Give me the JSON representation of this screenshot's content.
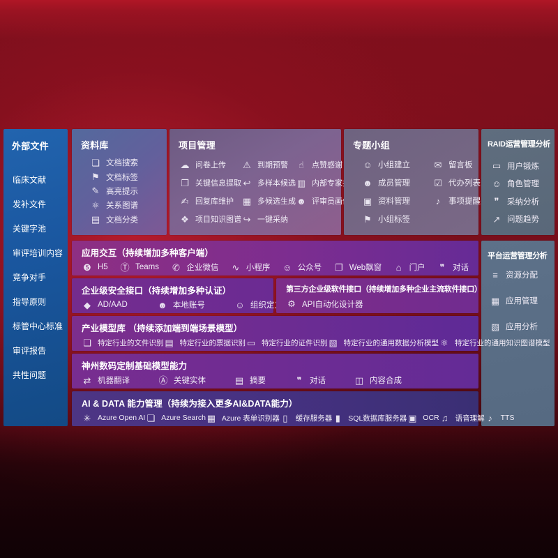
{
  "colors": {
    "background_red": "#7c0f1c",
    "sidebar_blue": "#1a57a0",
    "panel_slate": "#5d7189",
    "row_purple": "#7c2d90",
    "row_indigo": "#463181"
  },
  "sidebar": {
    "title": "外部文件",
    "items": [
      {
        "label": "临床文献"
      },
      {
        "label": "发补文件"
      },
      {
        "label": "关键字池"
      },
      {
        "label": "审评培训内容"
      },
      {
        "label": "竞争对手"
      },
      {
        "label": "指导原则"
      },
      {
        "label": "标管中心标准"
      },
      {
        "label": "审评报告"
      },
      {
        "label": "共性问题"
      }
    ]
  },
  "panels": {
    "repository": {
      "title": "资料库",
      "items": [
        {
          "icon": "document-search",
          "label": "文档搜索"
        },
        {
          "icon": "document-tag",
          "label": "文档标签"
        },
        {
          "icon": "highlight-pen",
          "label": "高亮提示"
        },
        {
          "icon": "relation-graph",
          "label": "关系图谱"
        },
        {
          "icon": "document-category",
          "label": "文档分类"
        }
      ]
    },
    "project": {
      "title": "项目管理",
      "items": [
        {
          "icon": "cloud-upload",
          "label": "问卷上传"
        },
        {
          "icon": "key-info-extract",
          "label": "关键信息提取"
        },
        {
          "icon": "writing-pen",
          "label": "回复库维护"
        },
        {
          "icon": "knowledge-graph",
          "label": "项目知识图谱"
        },
        {
          "icon": "alarm-warning",
          "label": "到期预警"
        },
        {
          "icon": "arrow-back",
          "label": "多样本候选"
        },
        {
          "icon": "grid-generate",
          "label": "多候选生成"
        },
        {
          "icon": "arrow-adopt",
          "label": "一键采纳"
        },
        {
          "icon": "thumbs-up",
          "label": "点赞感谢"
        },
        {
          "icon": "ranking-chart",
          "label": "内部专家排名"
        },
        {
          "icon": "person-portrait",
          "label": "评审员画像"
        }
      ]
    },
    "group": {
      "title": "专题小组",
      "items": [
        {
          "icon": "people-group",
          "label": "小组建立"
        },
        {
          "icon": "member-manage",
          "label": "成员管理"
        },
        {
          "icon": "album",
          "label": "资料管理"
        },
        {
          "icon": "group-tag",
          "label": "小组标签"
        },
        {
          "icon": "message-board",
          "label": "留言板"
        },
        {
          "icon": "todo-list",
          "label": "代办列表"
        },
        {
          "icon": "bell-reminder",
          "label": "事项提醒"
        }
      ]
    },
    "raid": {
      "title": "RAID运营管理分析",
      "items": [
        {
          "icon": "id-card",
          "label": "用户锻炼"
        },
        {
          "icon": "role-people",
          "label": "角色管理"
        },
        {
          "icon": "chat-analysis",
          "label": "采纳分析"
        },
        {
          "icon": "trend-chart",
          "label": "问题趋势"
        }
      ]
    },
    "platform": {
      "title": "平台运营管理分析",
      "items": [
        {
          "icon": "list-allocate",
          "label": "资源分配"
        },
        {
          "icon": "app-grid",
          "label": "应用管理"
        },
        {
          "icon": "app-analysis",
          "label": "应用分析"
        }
      ]
    }
  },
  "rows": {
    "interaction": {
      "title": "应用交互（持续增加多种客户端）",
      "items": [
        {
          "icon": "h5",
          "label": "H5"
        },
        {
          "icon": "teams",
          "label": "Teams"
        },
        {
          "icon": "wechat-work",
          "label": "企业微信"
        },
        {
          "icon": "mini-program",
          "label": "小程序"
        },
        {
          "icon": "official-account",
          "label": "公众号"
        },
        {
          "icon": "web-window",
          "label": "Web飘窗"
        },
        {
          "icon": "portal",
          "label": "门户"
        },
        {
          "icon": "dialogue",
          "label": "对话"
        }
      ]
    },
    "security": {
      "title": "企业级安全接口（持续增加多种认证）",
      "items": [
        {
          "icon": "ad-aad",
          "label": "AD/AAD"
        },
        {
          "icon": "local-account",
          "label": "本地账号"
        },
        {
          "icon": "org-define",
          "label": "组织定义"
        }
      ]
    },
    "thirdparty": {
      "title": "第三方企业级软件接口（持续增加多种企业主流软件接口）",
      "items": [
        {
          "icon": "api-designer",
          "label": "API自动化设计器"
        }
      ]
    },
    "models": {
      "title": "产业模型库 （持续添加端到端场景模型）",
      "items": [
        {
          "icon": "file-recognize",
          "label": "特定行业的文件识别"
        },
        {
          "icon": "invoice-recognize",
          "label": "特定行业的票据识别"
        },
        {
          "icon": "certificate-recognize",
          "label": "特定行业的证件识别"
        },
        {
          "icon": "data-analysis-model",
          "label": "特定行业的通用数据分析模型"
        },
        {
          "icon": "knowledge-graph-model",
          "label": "特定行业的通用知识图谱模型"
        }
      ]
    },
    "base_models": {
      "title": "神州数码定制基础模型能力",
      "items": [
        {
          "icon": "machine-translate",
          "label": "机器翻译"
        },
        {
          "icon": "key-entity",
          "label": "关键实体"
        },
        {
          "icon": "summary-doc",
          "label": "摘要"
        },
        {
          "icon": "chat-bubble",
          "label": "对话"
        },
        {
          "icon": "content-compose",
          "label": "内容合成"
        }
      ]
    },
    "aidata": {
      "title": "AI & DATA 能力管理（持续为接入更多AI&DATA能力）",
      "items": [
        {
          "icon": "openai",
          "label": "Azure Open AI"
        },
        {
          "icon": "azure-search",
          "label": "Azure Search"
        },
        {
          "icon": "form-recognizer",
          "label": "Azure 表单识别器"
        },
        {
          "icon": "cache-server",
          "label": "缓存服务器"
        },
        {
          "icon": "sql-server",
          "label": "SQL数据库服务器"
        },
        {
          "icon": "ocr",
          "label": "OCR"
        },
        {
          "icon": "speech-understand",
          "label": "语音理解"
        },
        {
          "icon": "tts",
          "label": "TTS"
        }
      ]
    }
  },
  "icons": {
    "document-search": "❏",
    "document-tag": "⚑",
    "highlight-pen": "✎",
    "relation-graph": "⚛",
    "document-category": "▤",
    "cloud-upload": "☁",
    "key-info-extract": "❐",
    "writing-pen": "✍",
    "knowledge-graph": "❖",
    "alarm-warning": "⚠",
    "arrow-back": "↩",
    "grid-generate": "▦",
    "arrow-adopt": "↪",
    "thumbs-up": "☝",
    "ranking-chart": "▥",
    "person-portrait": "☻",
    "people-group": "☺",
    "member-manage": "☻",
    "album": "▣",
    "group-tag": "⚑",
    "message-board": "✉",
    "todo-list": "☑",
    "bell-reminder": "♪",
    "id-card": "▭",
    "role-people": "☺",
    "chat-analysis": "❞",
    "trend-chart": "↗",
    "list-allocate": "≡",
    "app-grid": "▦",
    "app-analysis": "▧",
    "h5": "❺",
    "teams": "Ⓣ",
    "wechat-work": "✆",
    "mini-program": "∿",
    "official-account": "☺",
    "web-window": "❐",
    "portal": "⌂",
    "dialogue": "❞",
    "ad-aad": "◆",
    "local-account": "☻",
    "org-define": "☺",
    "api-designer": "⚙",
    "file-recognize": "❏",
    "invoice-recognize": "▤",
    "certificate-recognize": "▭",
    "data-analysis-model": "▧",
    "knowledge-graph-model": "⚛",
    "machine-translate": "⇄",
    "key-entity": "Ⓐ",
    "summary-doc": "▤",
    "chat-bubble": "❞",
    "content-compose": "◫",
    "openai": "✳",
    "azure-search": "❏",
    "form-recognizer": "▦",
    "cache-server": "▯",
    "sql-server": "▮",
    "ocr": "▣",
    "speech-understand": "♫",
    "tts": "♪"
  }
}
